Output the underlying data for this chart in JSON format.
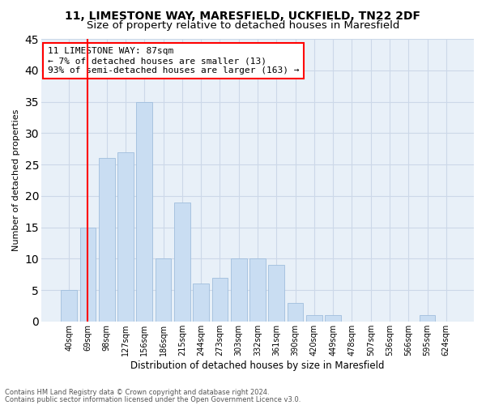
{
  "title": "11, LIMESTONE WAY, MARESFIELD, UCKFIELD, TN22 2DF",
  "subtitle": "Size of property relative to detached houses in Maresfield",
  "xlabel": "Distribution of detached houses by size in Maresfield",
  "ylabel": "Number of detached properties",
  "bar_labels": [
    "40sqm",
    "69sqm",
    "98sqm",
    "127sqm",
    "156sqm",
    "186sqm",
    "215sqm",
    "244sqm",
    "273sqm",
    "303sqm",
    "332sqm",
    "361sqm",
    "390sqm",
    "420sqm",
    "449sqm",
    "478sqm",
    "507sqm",
    "536sqm",
    "566sqm",
    "595sqm",
    "624sqm"
  ],
  "bar_values": [
    5,
    15,
    26,
    27,
    35,
    10,
    19,
    6,
    7,
    10,
    10,
    9,
    3,
    1,
    1,
    0,
    0,
    0,
    0,
    1,
    0
  ],
  "bar_color": "#c9ddf2",
  "bar_edge_color": "#a0bedd",
  "vline_color": "red",
  "vline_x": 1.0,
  "annotation_text": "11 LIMESTONE WAY: 87sqm\n← 7% of detached houses are smaller (13)\n93% of semi-detached houses are larger (163) →",
  "annotation_box_color": "white",
  "annotation_box_edge_color": "red",
  "ylim": [
    0,
    45
  ],
  "yticks": [
    0,
    5,
    10,
    15,
    20,
    25,
    30,
    35,
    40,
    45
  ],
  "grid_color": "#ccd8e8",
  "background_color": "#e8f0f8",
  "footer_line1": "Contains HM Land Registry data © Crown copyright and database right 2024.",
  "footer_line2": "Contains public sector information licensed under the Open Government Licence v3.0.",
  "title_fontsize": 10,
  "subtitle_fontsize": 9.5,
  "xlabel_fontsize": 8.5,
  "ylabel_fontsize": 8,
  "tick_fontsize": 7,
  "annotation_fontsize": 8,
  "footer_fontsize": 6
}
